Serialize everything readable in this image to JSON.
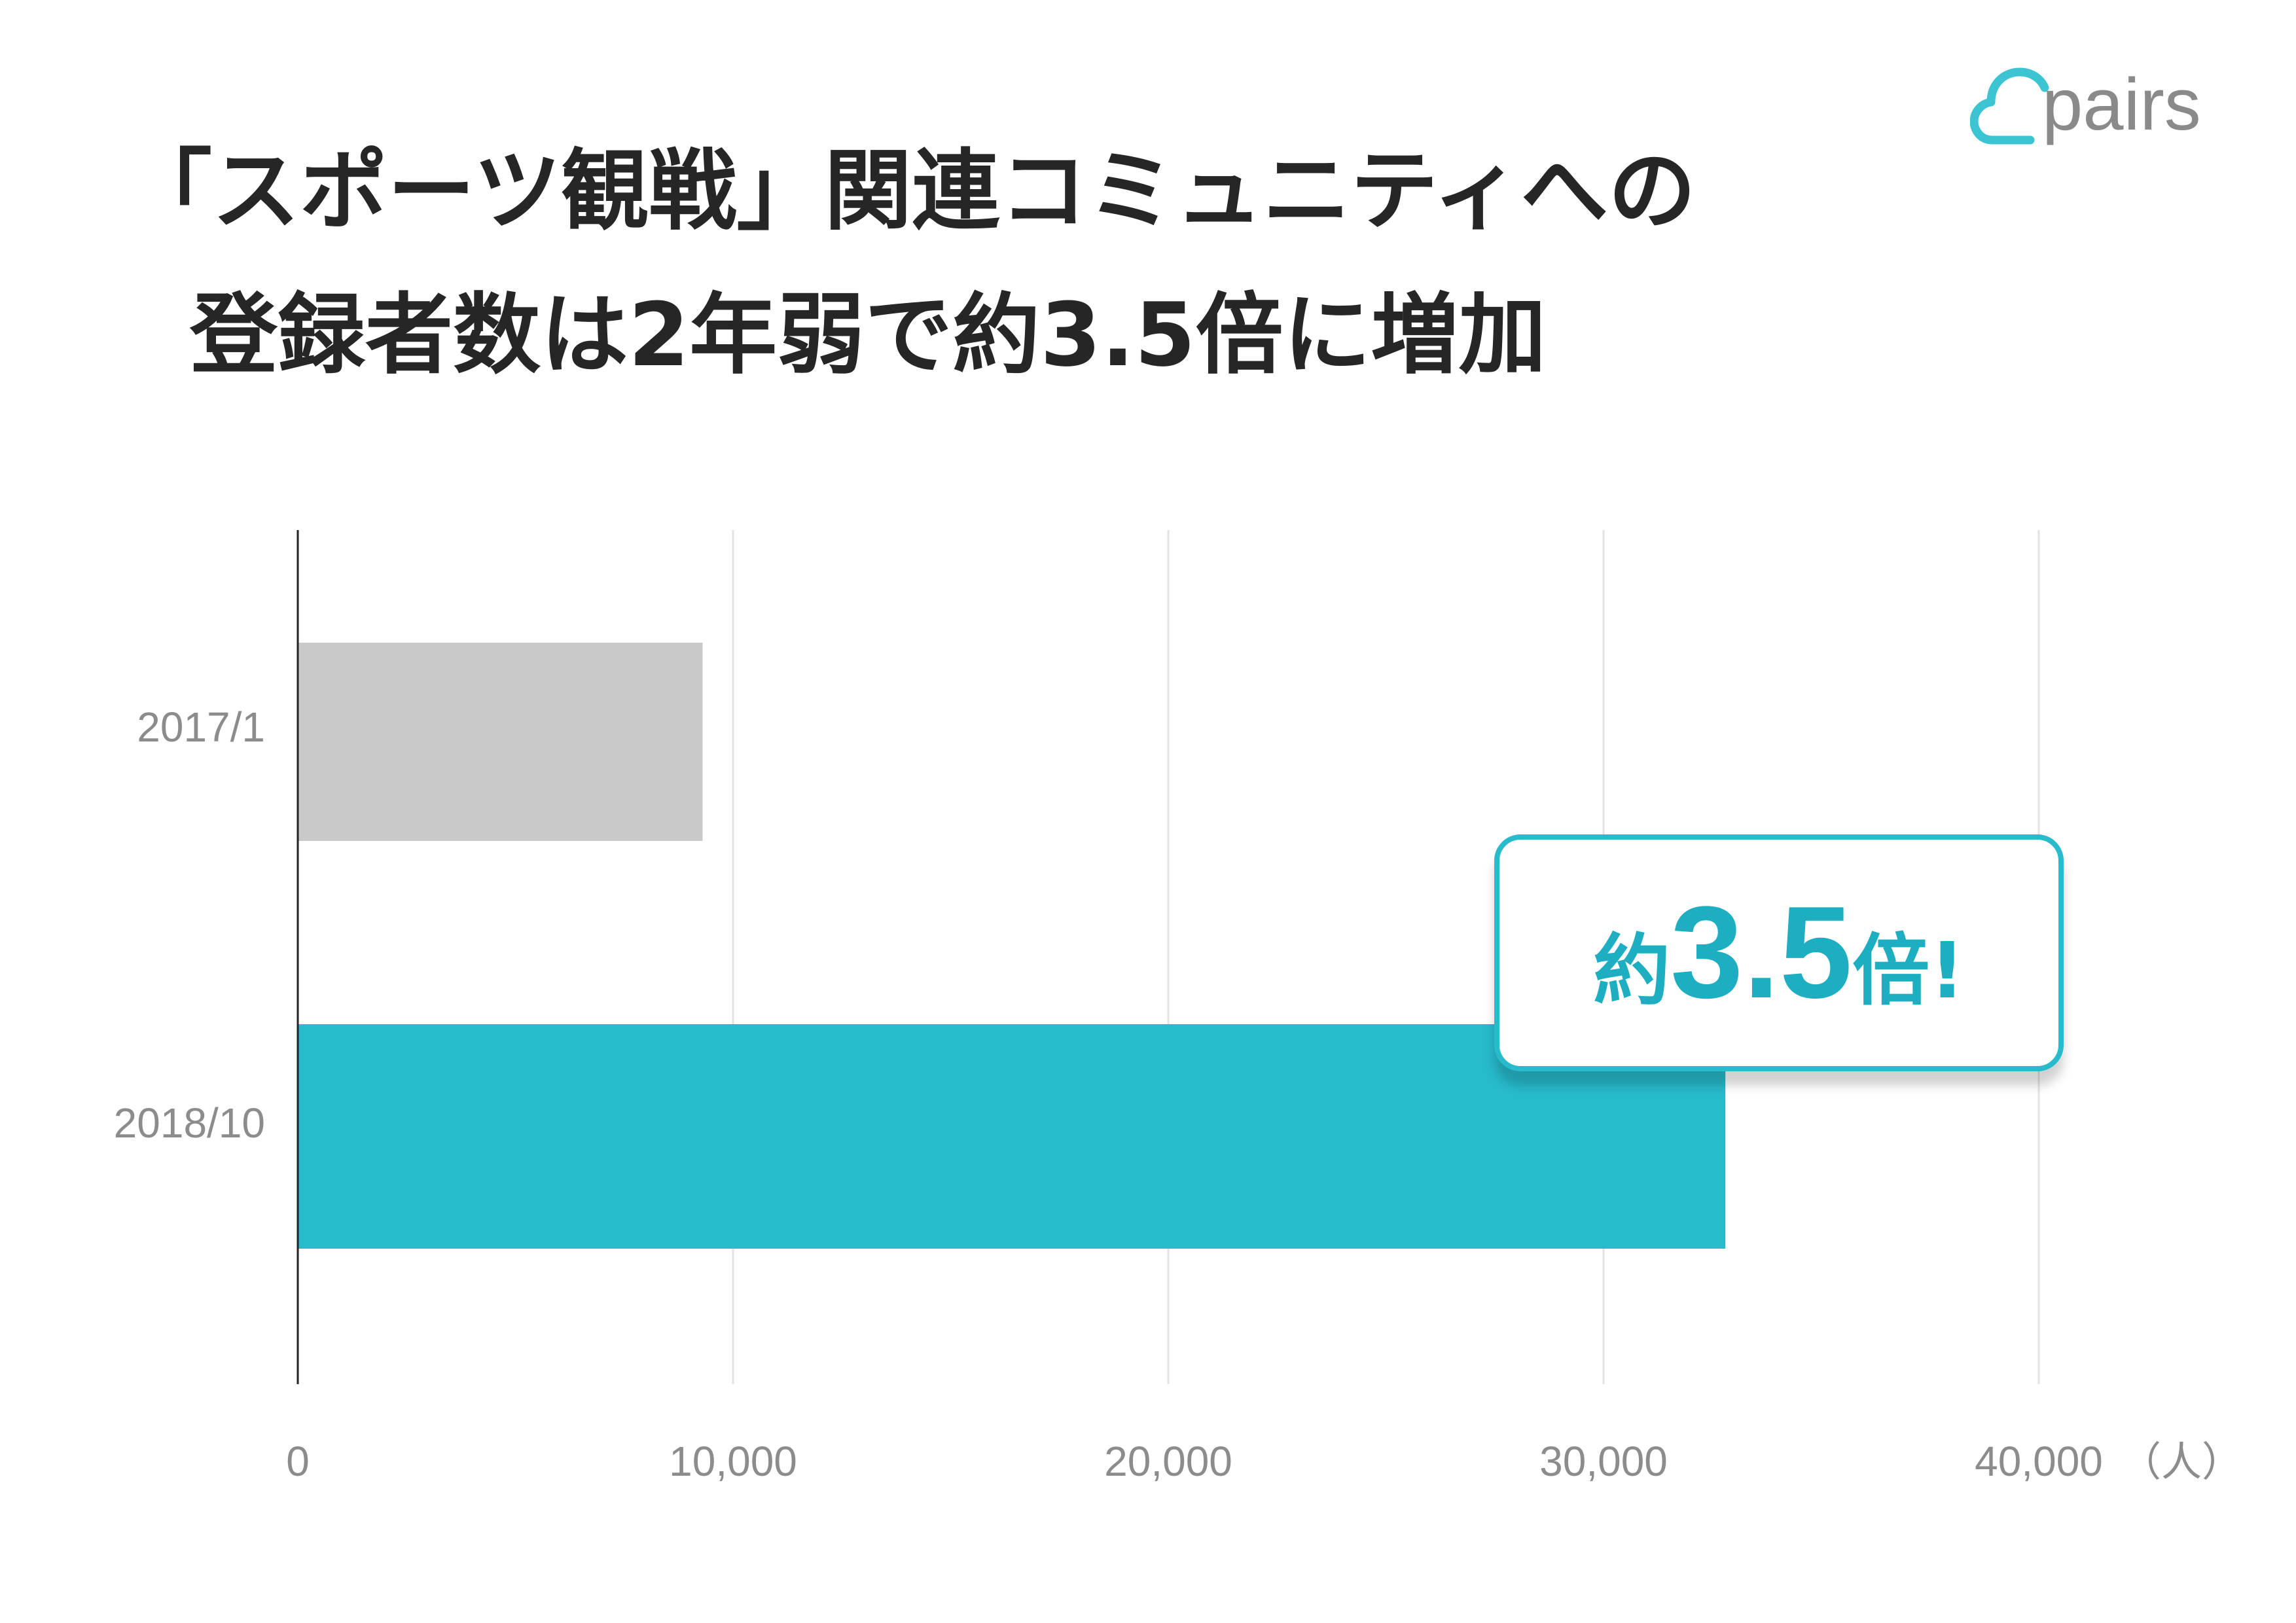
{
  "title": {
    "line1": "「スポーツ観戦」関連コミュニティへの",
    "line2": "登録者数は2年弱で約3.5倍に増加"
  },
  "logo": {
    "text": "pairs",
    "color": "#3cc4d2"
  },
  "callout": {
    "prefix": "約",
    "value": "3.5",
    "suffix": "倍!"
  },
  "colors": {
    "accent": "#27bbcc",
    "gray_bar": "#c9c9c9",
    "axis_text": "#8c8c8c"
  },
  "chart_data": {
    "type": "bar",
    "orientation": "horizontal",
    "categories": [
      "2017/1",
      "2018/10"
    ],
    "values": [
      9300,
      32800
    ],
    "bar_colors": [
      "#c9c9c9",
      "#27bbcc"
    ],
    "xlim": [
      0,
      40000
    ],
    "xticks": [
      0,
      10000,
      20000,
      30000,
      40000
    ],
    "xtick_labels": [
      "0",
      "10,000",
      "20,000",
      "30,000",
      "40,000"
    ],
    "xunit": "（人）",
    "grid": true
  }
}
